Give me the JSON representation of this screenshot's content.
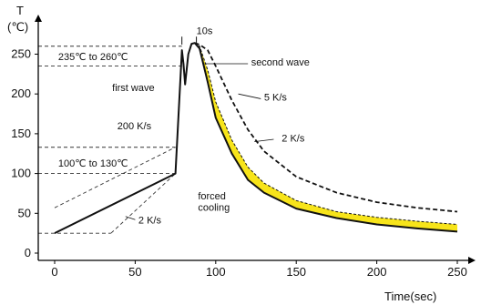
{
  "chart_data": {
    "type": "line",
    "title": "",
    "xlabel": "Time(sec)",
    "ylabel": "T",
    "ylabel_unit": "(℃)",
    "xlim": [
      0,
      250
    ],
    "ylim": [
      0,
      270
    ],
    "xticks": [
      0,
      50,
      100,
      150,
      200,
      250
    ],
    "yticks": [
      0,
      50,
      100,
      150,
      200,
      250
    ],
    "grid": false,
    "legend": "none",
    "series": [
      {
        "style": "solid",
        "x": [
          0,
          75,
          79,
          80,
          81,
          83,
          85,
          87,
          90,
          95,
          100,
          110,
          120,
          130,
          150,
          175,
          200,
          225,
          250
        ],
        "y": [
          25,
          100,
          255,
          238,
          212,
          250,
          263,
          264,
          257,
          215,
          170,
          125,
          92,
          76,
          56,
          44,
          36,
          31,
          27
        ]
      },
      {
        "style": "dashed",
        "x": [
          87,
          90,
          95,
          100,
          110,
          120,
          130,
          150,
          175,
          200,
          225,
          250
        ],
        "y": [
          264,
          262,
          255,
          235,
          192,
          155,
          128,
          96,
          76,
          64,
          57,
          52
        ]
      },
      {
        "style": "thin-dashed",
        "x": [
          87,
          90,
          95,
          100,
          110,
          120,
          130,
          150,
          175,
          200,
          225,
          250
        ],
        "y": [
          264,
          260,
          230,
          190,
          142,
          108,
          88,
          66,
          52,
          45,
          40,
          36
        ]
      },
      {
        "style": "yellow-band",
        "x": [
          90,
          95,
          100,
          110,
          120,
          130,
          150,
          175,
          200,
          225,
          250
        ],
        "y": [
          260,
          230,
          190,
          142,
          108,
          88,
          66,
          52,
          45,
          40,
          36
        ]
      }
    ],
    "reference_lines": {
      "dashed_horizontal_y": [
        25,
        100,
        133,
        235,
        260
      ],
      "dashed_construction": [
        {
          "x": [
            0,
            75
          ],
          "y": [
            57,
            133
          ]
        },
        {
          "x": [
            35,
            75
          ],
          "y": [
            25,
            100
          ]
        },
        {
          "x": [
            75,
            79
          ],
          "y": [
            100,
            255
          ]
        }
      ]
    },
    "annotations": [
      {
        "text": "235℃ to 260℃",
        "x": 25,
        "y": 247
      },
      {
        "text": "first wave",
        "x": 62,
        "y": 208
      },
      {
        "text": "200 K/s",
        "x": 60,
        "y": 160
      },
      {
        "text": "100℃ to 130℃",
        "x": 25,
        "y": 113
      },
      {
        "text": "2 K/s",
        "x": 52,
        "y": 42
      },
      {
        "text": "10s",
        "x": 88,
        "y": 280
      },
      {
        "text": "second wave",
        "x": 122,
        "y": 240
      },
      {
        "text": "5 K/s",
        "x": 130,
        "y": 196
      },
      {
        "text": "2 K/s",
        "x": 141,
        "y": 145
      },
      {
        "text": "forced",
        "x": 89,
        "y": 72
      },
      {
        "text": "cooling",
        "x": 89,
        "y": 58
      }
    ],
    "colors": {
      "line": "#111111",
      "band": "#f7e41a",
      "axis": "#000000"
    }
  }
}
